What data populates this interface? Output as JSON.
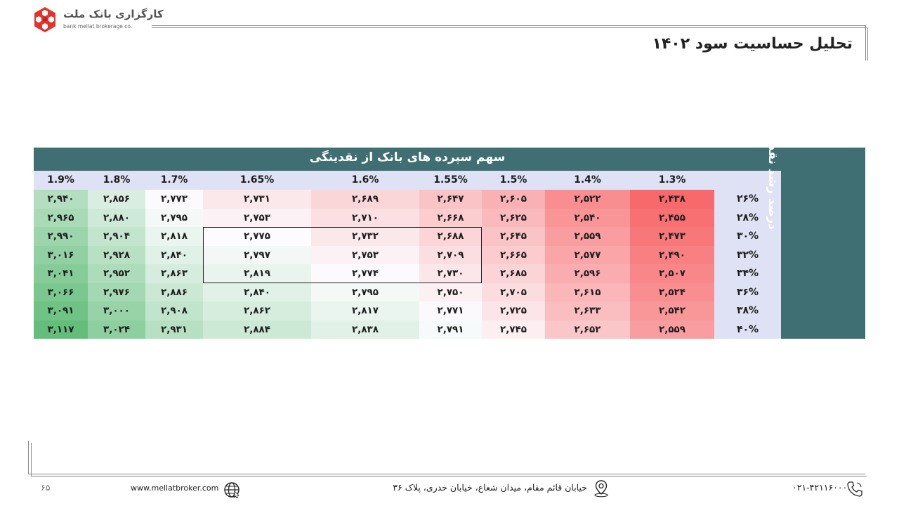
{
  "logo": {
    "name_fa": "کارگزاری بانک ملت",
    "name_en": "bank mellat brokerage co."
  },
  "page_title": "تحلیل حساسیت سود ۱۴۰۲",
  "table": {
    "column_group_title": "سهم سپرده های بانک از نقدینگی",
    "row_group_title": "درصد رشد نقدینگی",
    "column_headers": [
      "1.9%",
      "1.8%",
      "1.7%",
      "1.65%",
      "1.6%",
      "1.55%",
      "1.5%",
      "1.4%",
      "1.3%"
    ],
    "row_headers": [
      "۲۶%",
      "۲۸%",
      "۳۰%",
      "۳۲%",
      "۳۴%",
      "۳۶%",
      "۳۸%",
      "۴۰%"
    ],
    "rows": [
      [
        "۲,۹۴۰",
        "۲,۸۵۶",
        "۲,۷۷۳",
        "۲,۷۳۱",
        "۲,۶۸۹",
        "۲,۶۴۷",
        "۲,۶۰۵",
        "۲,۵۲۲",
        "۲,۴۳۸"
      ],
      [
        "۲,۹۶۵",
        "۲,۸۸۰",
        "۲,۷۹۵",
        "۲,۷۵۳",
        "۲,۷۱۰",
        "۲,۶۶۸",
        "۲,۶۲۵",
        "۲,۵۴۰",
        "۲,۴۵۵"
      ],
      [
        "۲,۹۹۰",
        "۲,۹۰۴",
        "۲,۸۱۸",
        "۲,۷۷۵",
        "۲,۷۳۲",
        "۲,۶۸۸",
        "۲,۶۴۵",
        "۲,۵۵۹",
        "۲,۴۷۳"
      ],
      [
        "۳,۰۱۶",
        "۲,۹۲۸",
        "۲,۸۴۰",
        "۲,۷۹۷",
        "۲,۷۵۳",
        "۲,۷۰۹",
        "۲,۶۶۵",
        "۲,۵۷۷",
        "۲,۴۹۰"
      ],
      [
        "۳,۰۴۱",
        "۲,۹۵۲",
        "۲,۸۶۳",
        "۲,۸۱۹",
        "۲,۷۷۴",
        "۲,۷۳۰",
        "۲,۶۸۵",
        "۲,۵۹۶",
        "۲,۵۰۷"
      ],
      [
        "۳,۰۶۶",
        "۲,۹۷۶",
        "۲,۸۸۶",
        "۲,۸۴۰",
        "۲,۷۹۵",
        "۲,۷۵۰",
        "۲,۷۰۵",
        "۲,۶۱۵",
        "۲,۵۲۴"
      ],
      [
        "۳,۰۹۱",
        "۳,۰۰۰",
        "۲,۹۰۸",
        "۲,۸۶۲",
        "۲,۸۱۷",
        "۲,۷۷۱",
        "۲,۷۲۵",
        "۲,۶۳۳",
        "۲,۵۴۲"
      ],
      [
        "۳,۱۱۷",
        "۳,۰۲۴",
        "۲,۹۳۱",
        "۲,۸۸۴",
        "۲,۸۳۸",
        "۲,۷۹۱",
        "۲,۷۴۵",
        "۲,۶۵۲",
        "۲,۵۵۹"
      ]
    ],
    "values": [
      [
        2940,
        2856,
        2773,
        2731,
        2689,
        2647,
        2605,
        2522,
        2438
      ],
      [
        2965,
        2880,
        2795,
        2753,
        2710,
        2668,
        2625,
        2540,
        2455
      ],
      [
        2990,
        2904,
        2818,
        2775,
        2732,
        2688,
        2645,
        2559,
        2473
      ],
      [
        3016,
        2928,
        2840,
        2797,
        2753,
        2709,
        2665,
        2577,
        2490
      ],
      [
        3041,
        2952,
        2863,
        2819,
        2774,
        2730,
        2685,
        2596,
        2507
      ],
      [
        3066,
        2976,
        2886,
        2840,
        2795,
        2750,
        2705,
        2615,
        2524
      ],
      [
        3091,
        3000,
        2908,
        2862,
        2817,
        2771,
        2725,
        2633,
        2542
      ],
      [
        3117,
        3024,
        2931,
        2884,
        2838,
        2791,
        2745,
        2652,
        2559
      ]
    ],
    "color_scale": {
      "low": "#f8696b",
      "mid": "#fcfcff",
      "high": "#63be7b"
    },
    "highlighted_block": {
      "rows": [
        2,
        4
      ],
      "cols": [
        3,
        5
      ]
    }
  },
  "footer": {
    "page_number": "۶۵",
    "website": "www.mellatbroker.com",
    "address": "خیابان قائم مقام، میدان شعاع، خیابان خدری، پلاک ۳۶",
    "phone": "۰۲۱-۴۲۱۱۶۰۰۰",
    "icons": {
      "web": "globe-icon",
      "address": "location-pin-icon",
      "phone": "phone-icon"
    }
  }
}
